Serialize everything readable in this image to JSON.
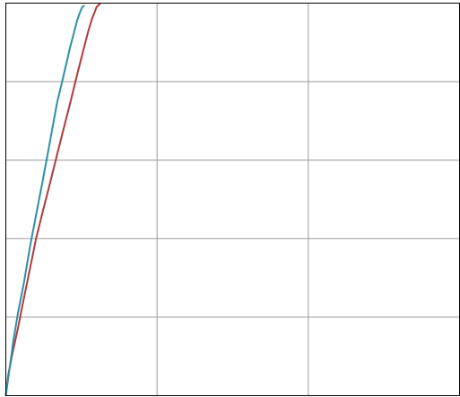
{
  "chart_data": {
    "type": "line",
    "title": "",
    "xlabel": "",
    "ylabel": "",
    "xlim": [
      0,
      3
    ],
    "ylim": [
      0,
      5
    ],
    "x_ticks": [
      0,
      1,
      2,
      3
    ],
    "y_ticks": [
      0,
      1,
      2,
      3,
      4,
      5
    ],
    "grid": true,
    "legend": "none",
    "colors": {
      "grid": "#9a9a9a",
      "frame": "#000000"
    },
    "series": [
      {
        "color": "#b23a3a",
        "x": [
          0.0,
          0.015,
          0.04,
          0.08,
          0.115,
          0.16,
          0.2,
          0.245,
          0.29,
          0.335,
          0.385,
          0.43,
          0.47,
          0.51,
          0.545,
          0.57,
          0.6,
          0.625
        ],
        "y": [
          0.0,
          0.25,
          0.5,
          0.86,
          1.2,
          1.62,
          2.0,
          2.35,
          2.69,
          3.04,
          3.42,
          3.76,
          4.08,
          4.38,
          4.64,
          4.8,
          4.95,
          5.0
        ]
      },
      {
        "color": "#2e8fa6",
        "x": [
          0.0,
          0.02,
          0.05,
          0.08,
          0.12,
          0.16,
          0.2,
          0.24,
          0.275,
          0.31,
          0.34,
          0.37,
          0.4,
          0.425,
          0.45,
          0.47,
          0.49,
          0.505,
          0.52
        ],
        "y": [
          0.0,
          0.28,
          0.7,
          1.05,
          1.44,
          1.9,
          2.3,
          2.7,
          3.06,
          3.43,
          3.74,
          3.98,
          4.23,
          4.44,
          4.62,
          4.77,
          4.88,
          4.95,
          4.97
        ]
      }
    ]
  }
}
